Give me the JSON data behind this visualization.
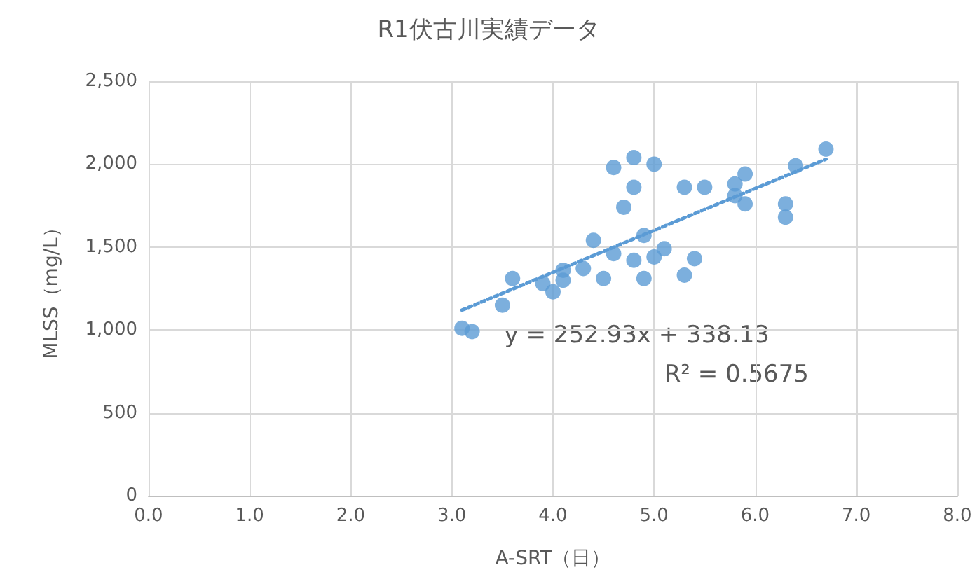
{
  "chart_data": {
    "type": "scatter",
    "title": "R1伏古川実績データ",
    "xlabel": "A-SRT（日）",
    "ylabel": "MLSS（mg/L）",
    "series": [
      {
        "color": "#5b9bd5",
        "marker": "circle",
        "x": [
          3.1,
          3.2,
          3.5,
          3.6,
          3.9,
          4.0,
          4.1,
          4.1,
          4.3,
          4.4,
          4.5,
          4.6,
          4.6,
          4.7,
          4.8,
          4.8,
          4.8,
          4.9,
          4.9,
          5.0,
          5.0,
          5.1,
          5.3,
          5.3,
          5.4,
          5.5,
          5.8,
          5.8,
          5.9,
          5.9,
          6.3,
          6.3,
          6.4,
          6.7
        ],
        "values": [
          1010,
          990,
          1150,
          1310,
          1280,
          1230,
          1360,
          1300,
          1370,
          1540,
          1310,
          1460,
          1980,
          1740,
          1860,
          2040,
          1420,
          1570,
          1310,
          2000,
          1440,
          1490,
          1860,
          1330,
          1430,
          1860,
          1880,
          1810,
          1940,
          1760,
          1760,
          1680,
          1990,
          2090
        ]
      },
      {
        "type": "line",
        "color": "#5b9bd5",
        "marker": "none",
        "line_style": "dotted",
        "x": [
          3.1,
          6.7
        ],
        "values": [
          1120,
          2030
        ]
      }
    ],
    "annotations": [
      "y = 252.93x + 338.13",
      "R² = 0.5675"
    ],
    "xlim": [
      0,
      8
    ],
    "xticks": [
      {
        "value": 0,
        "label": "0.0"
      },
      {
        "value": 1,
        "label": "1.0"
      },
      {
        "value": 2,
        "label": "2.0"
      },
      {
        "value": 3,
        "label": "3.0"
      },
      {
        "value": 4,
        "label": "4.0"
      },
      {
        "value": 5,
        "label": "5.0"
      },
      {
        "value": 6,
        "label": "6.0"
      },
      {
        "value": 7,
        "label": "7.0"
      },
      {
        "value": 8,
        "label": "8.0"
      }
    ],
    "ylim": [
      0,
      2500
    ],
    "yticks": [
      0,
      500,
      {
        "value": 1000,
        "label": "1,000"
      },
      {
        "value": 1500,
        "label": "1,500"
      },
      {
        "value": 2000,
        "label": "2,000"
      },
      {
        "value": 2500,
        "label": "2,500"
      }
    ],
    "grid": true
  }
}
